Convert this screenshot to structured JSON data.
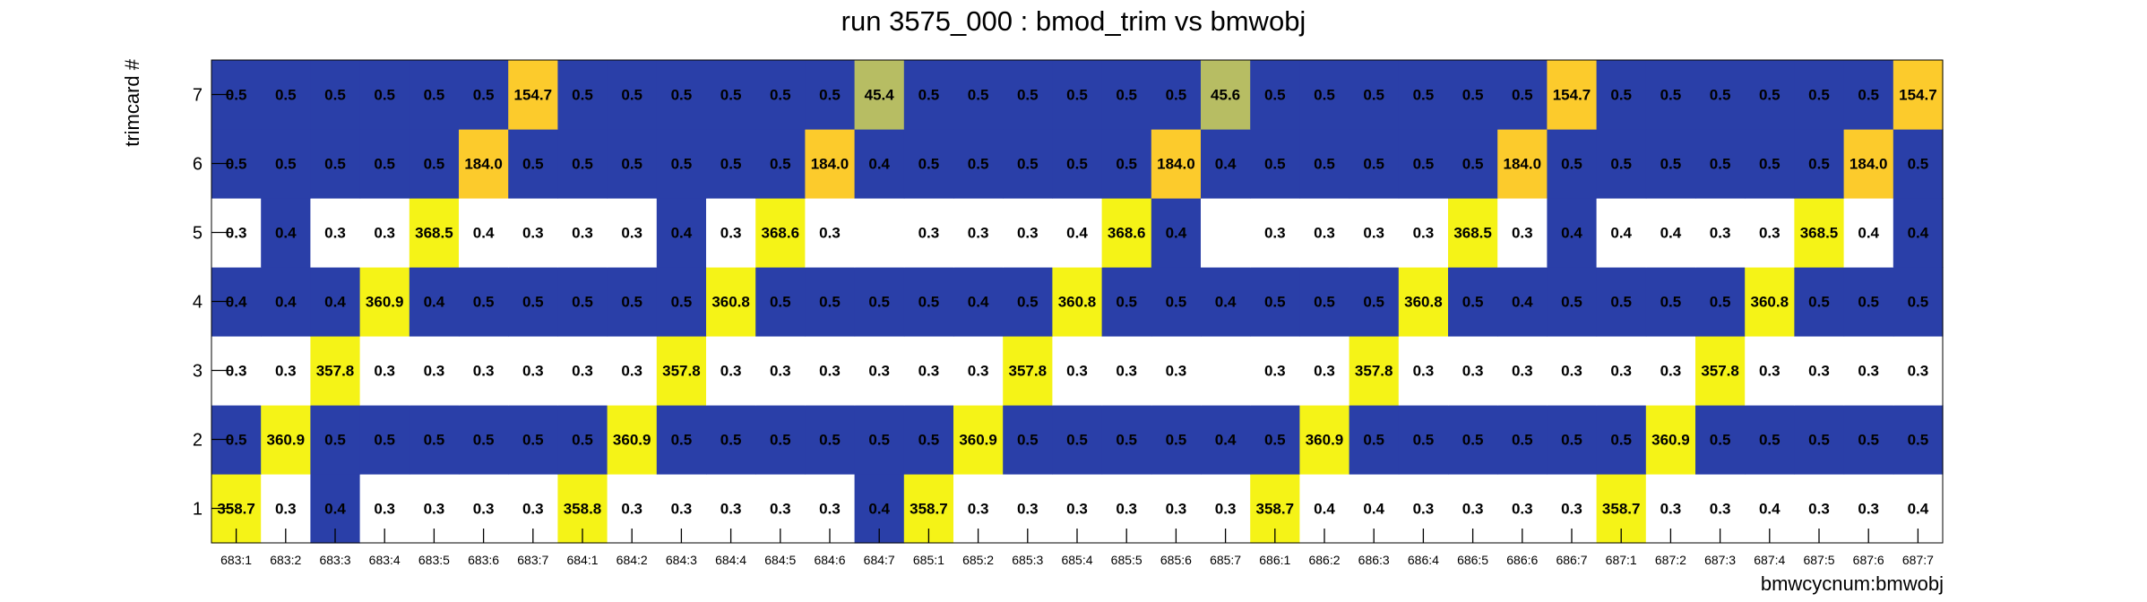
{
  "chart_data": {
    "type": "heatmap",
    "title": "run 3575_000 : bmod_trim vs bmwobj",
    "xlabel": "bmwcycnum:bmwobj",
    "ylabel": "trimcard #",
    "x_categories": [
      "683:1",
      "683:2",
      "683:3",
      "683:4",
      "683:5",
      "683:6",
      "683:7",
      "684:1",
      "684:2",
      "684:3",
      "684:4",
      "684:5",
      "684:6",
      "684:7",
      "685:1",
      "685:2",
      "685:3",
      "685:4",
      "685:5",
      "685:6",
      "685:7",
      "686:1",
      "686:2",
      "686:3",
      "686:4",
      "686:5",
      "686:6",
      "686:7",
      "687:1",
      "687:2",
      "687:3",
      "687:4",
      "687:5",
      "687:6",
      "687:7"
    ],
    "y_categories": [
      "1",
      "2",
      "3",
      "4",
      "5",
      "6",
      "7"
    ],
    "grid": false,
    "colors": {
      "white": "#ffffff",
      "blue": "#2a3fa8",
      "yellow": "#f5f317",
      "gold": "#fccb2c",
      "olive": "#b7bd63"
    },
    "rows": [
      {
        "y": "1",
        "values": [
          358.7,
          0.3,
          0.4,
          0.3,
          0.3,
          0.3,
          0.3,
          358.8,
          0.3,
          0.3,
          0.3,
          0.3,
          0.3,
          0.4,
          358.7,
          0.3,
          0.3,
          0.3,
          0.3,
          0.3,
          0.3,
          358.7,
          0.4,
          0.4,
          0.3,
          0.3,
          0.3,
          0.3,
          358.7,
          0.3,
          0.3,
          0.4,
          0.3,
          0.3,
          0.4
        ],
        "colors": [
          "yellow",
          "white",
          "blue",
          "white",
          "white",
          "white",
          "white",
          "yellow",
          "white",
          "white",
          "white",
          "white",
          "white",
          "blue",
          "yellow",
          "white",
          "white",
          "white",
          "white",
          "white",
          "white",
          "yellow",
          "white",
          "white",
          "white",
          "white",
          "white",
          "white",
          "yellow",
          "white",
          "white",
          "white",
          "white",
          "white",
          "white"
        ]
      },
      {
        "y": "2",
        "values": [
          0.5,
          360.9,
          0.5,
          0.5,
          0.5,
          0.5,
          0.5,
          0.5,
          360.9,
          0.5,
          0.5,
          0.5,
          0.5,
          0.5,
          0.5,
          360.9,
          0.5,
          0.5,
          0.5,
          0.5,
          0.4,
          0.5,
          360.9,
          0.5,
          0.5,
          0.5,
          0.5,
          0.5,
          0.5,
          360.9,
          0.5,
          0.5,
          0.5,
          0.5,
          0.5
        ],
        "colors": [
          "blue",
          "yellow",
          "blue",
          "blue",
          "blue",
          "blue",
          "blue",
          "blue",
          "yellow",
          "blue",
          "blue",
          "blue",
          "blue",
          "blue",
          "blue",
          "yellow",
          "blue",
          "blue",
          "blue",
          "blue",
          "blue",
          "blue",
          "yellow",
          "blue",
          "blue",
          "blue",
          "blue",
          "blue",
          "blue",
          "yellow",
          "blue",
          "blue",
          "blue",
          "blue",
          "blue"
        ]
      },
      {
        "y": "3",
        "values": [
          0.3,
          0.3,
          357.8,
          0.3,
          0.3,
          0.3,
          0.3,
          0.3,
          0.3,
          357.8,
          0.3,
          0.3,
          0.3,
          0.3,
          0.3,
          0.3,
          357.8,
          0.3,
          0.3,
          0.3,
          null,
          0.3,
          0.3,
          357.8,
          0.3,
          0.3,
          0.3,
          0.3,
          0.3,
          0.3,
          357.8,
          0.3,
          0.3,
          0.3,
          0.3
        ],
        "colors": [
          "white",
          "white",
          "yellow",
          "white",
          "white",
          "white",
          "white",
          "white",
          "white",
          "yellow",
          "white",
          "white",
          "white",
          "white",
          "white",
          "white",
          "yellow",
          "white",
          "white",
          "white",
          "white",
          "white",
          "white",
          "yellow",
          "white",
          "white",
          "white",
          "white",
          "white",
          "white",
          "yellow",
          "white",
          "white",
          "white",
          "white"
        ]
      },
      {
        "y": "4",
        "values": [
          0.4,
          0.4,
          0.4,
          360.9,
          0.4,
          0.5,
          0.5,
          0.5,
          0.5,
          0.5,
          360.8,
          0.5,
          0.5,
          0.5,
          0.5,
          0.4,
          0.5,
          360.8,
          0.5,
          0.5,
          0.4,
          0.5,
          0.5,
          0.5,
          360.8,
          0.5,
          0.4,
          0.5,
          0.5,
          0.5,
          0.5,
          360.8,
          0.5,
          0.5,
          0.5
        ],
        "colors": [
          "blue",
          "blue",
          "blue",
          "yellow",
          "blue",
          "blue",
          "blue",
          "blue",
          "blue",
          "blue",
          "yellow",
          "blue",
          "blue",
          "blue",
          "blue",
          "blue",
          "blue",
          "yellow",
          "blue",
          "blue",
          "blue",
          "blue",
          "blue",
          "blue",
          "yellow",
          "blue",
          "blue",
          "blue",
          "blue",
          "blue",
          "blue",
          "yellow",
          "blue",
          "blue",
          "blue"
        ]
      },
      {
        "y": "5",
        "values": [
          0.3,
          0.4,
          0.3,
          0.3,
          368.5,
          0.4,
          0.3,
          0.3,
          0.3,
          0.4,
          0.3,
          368.6,
          0.3,
          null,
          0.3,
          0.3,
          0.3,
          0.4,
          368.6,
          0.4,
          null,
          0.3,
          0.3,
          0.3,
          0.3,
          368.5,
          0.3,
          0.4,
          0.4,
          0.4,
          0.3,
          0.3,
          368.5,
          0.4,
          0.4
        ],
        "colors": [
          "white",
          "blue",
          "white",
          "white",
          "yellow",
          "white",
          "white",
          "white",
          "white",
          "blue",
          "white",
          "yellow",
          "white",
          "white",
          "white",
          "white",
          "white",
          "white",
          "yellow",
          "blue",
          "white",
          "white",
          "white",
          "white",
          "white",
          "yellow",
          "white",
          "blue",
          "white",
          "white",
          "white",
          "white",
          "yellow",
          "white",
          "blue"
        ]
      },
      {
        "y": "6",
        "values": [
          0.5,
          0.5,
          0.5,
          0.5,
          0.5,
          184.0,
          0.5,
          0.5,
          0.5,
          0.5,
          0.5,
          0.5,
          184.0,
          0.4,
          0.5,
          0.5,
          0.5,
          0.5,
          0.5,
          184.0,
          0.4,
          0.5,
          0.5,
          0.5,
          0.5,
          0.5,
          184.0,
          0.5,
          0.5,
          0.5,
          0.5,
          0.5,
          0.5,
          184.0,
          0.5
        ],
        "colors": [
          "blue",
          "blue",
          "blue",
          "blue",
          "blue",
          "gold",
          "blue",
          "blue",
          "blue",
          "blue",
          "blue",
          "blue",
          "gold",
          "blue",
          "blue",
          "blue",
          "blue",
          "blue",
          "blue",
          "gold",
          "blue",
          "blue",
          "blue",
          "blue",
          "blue",
          "blue",
          "gold",
          "blue",
          "blue",
          "blue",
          "blue",
          "blue",
          "blue",
          "gold",
          "blue"
        ]
      },
      {
        "y": "7",
        "values": [
          0.5,
          0.5,
          0.5,
          0.5,
          0.5,
          0.5,
          154.7,
          0.5,
          0.5,
          0.5,
          0.5,
          0.5,
          0.5,
          45.4,
          0.5,
          0.5,
          0.5,
          0.5,
          0.5,
          0.5,
          45.6,
          0.5,
          0.5,
          0.5,
          0.5,
          0.5,
          0.5,
          154.7,
          0.5,
          0.5,
          0.5,
          0.5,
          0.5,
          0.5,
          154.7
        ],
        "colors": [
          "blue",
          "blue",
          "blue",
          "blue",
          "blue",
          "blue",
          "gold",
          "blue",
          "blue",
          "blue",
          "blue",
          "blue",
          "blue",
          "olive",
          "blue",
          "blue",
          "blue",
          "blue",
          "blue",
          "blue",
          "olive",
          "blue",
          "blue",
          "blue",
          "blue",
          "blue",
          "blue",
          "gold",
          "blue",
          "blue",
          "blue",
          "blue",
          "blue",
          "blue",
          "gold"
        ]
      }
    ]
  }
}
